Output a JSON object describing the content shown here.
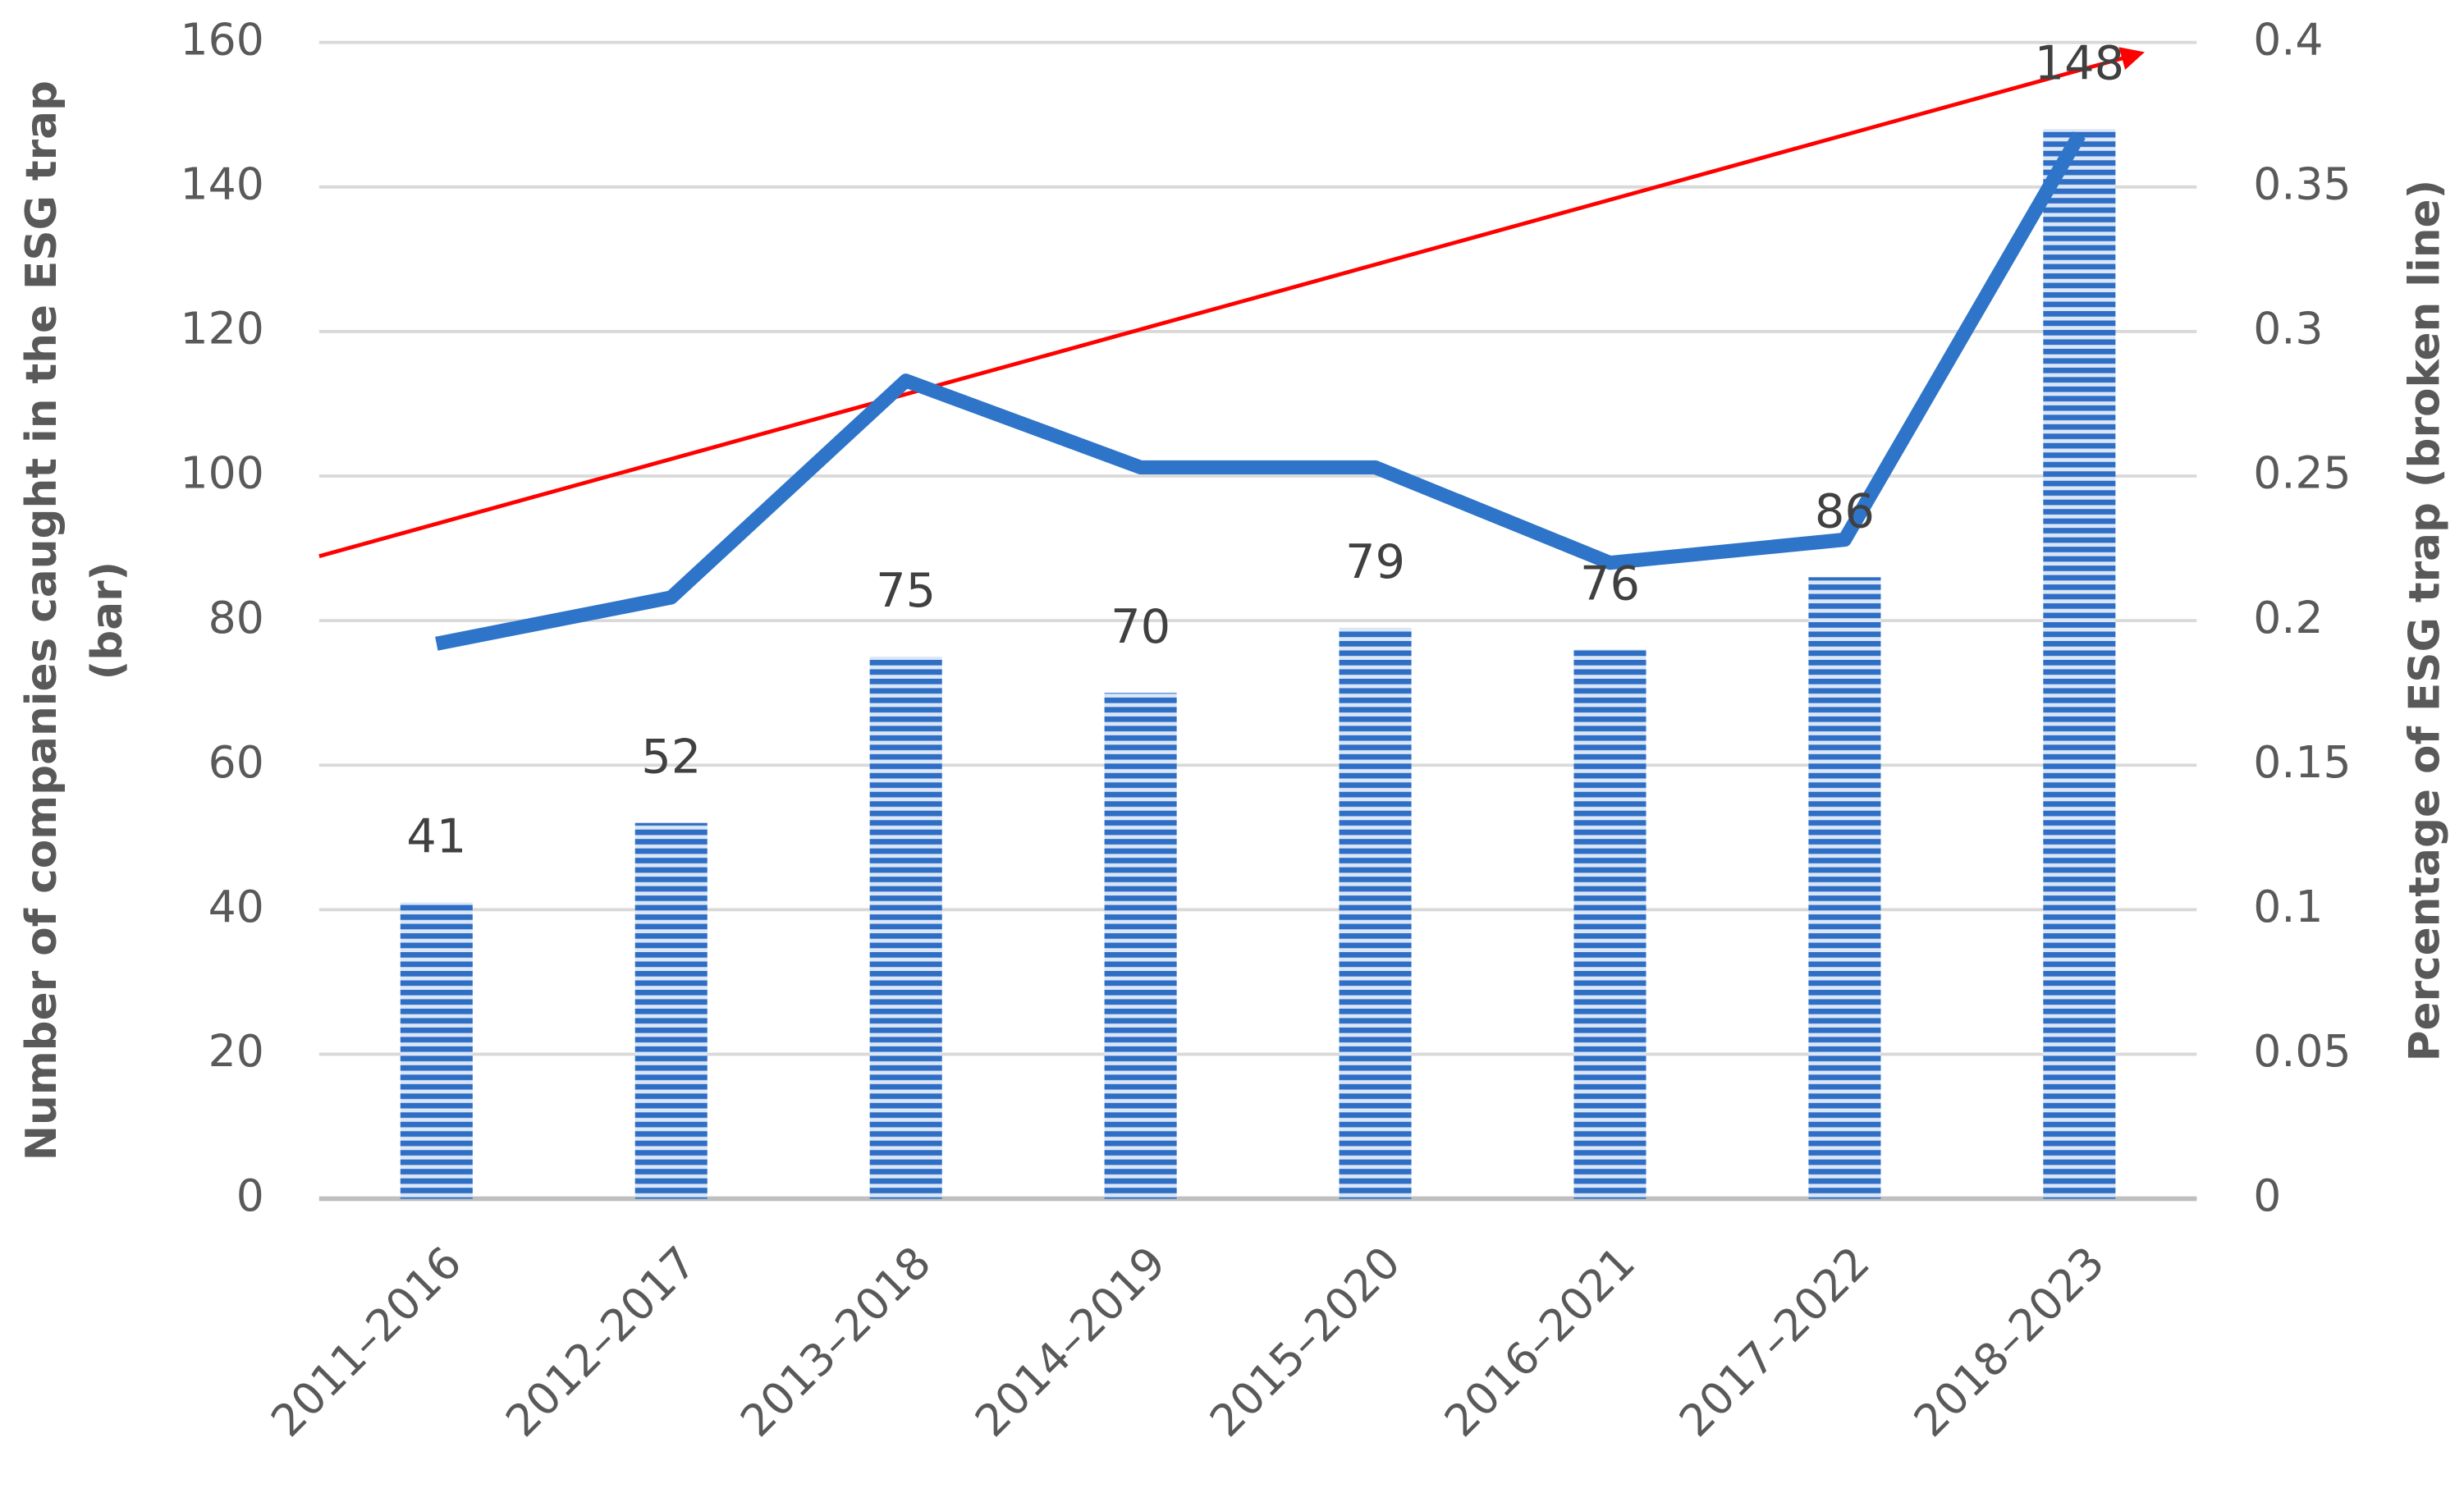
{
  "chart_data": {
    "type": "bar",
    "categories": [
      "2011–2016",
      "2012–2017",
      "2013–2018",
      "2014–2019",
      "2015–2020",
      "2016–2021",
      "2017–2022",
      "2018–2023"
    ],
    "series": [
      {
        "color": "#2e6ec4",
        "values": [
          41,
          52,
          75,
          70,
          79,
          76,
          86,
          148
        ]
      },
      {
        "type": "line",
        "axis": "y2",
        "color": "#2e75c9",
        "values": [
          0.192,
          0.208,
          0.283,
          0.253,
          0.253,
          0.22,
          0.228,
          0.368
        ]
      }
    ],
    "ylabel": [
      "Number of companies caught in the ESG trap",
      "(bar)"
    ],
    "y2label": "Percentage of ESG trap (broken line)",
    "ylim": [
      0,
      160
    ],
    "yticks": [
      0,
      20,
      40,
      60,
      80,
      100,
      120,
      140,
      160
    ],
    "y2lim": [
      0,
      0.4
    ],
    "y2ticks": [
      0,
      0.05,
      0.1,
      0.15,
      0.2,
      0.25,
      0.3,
      0.35,
      0.4
    ],
    "grid": true
  }
}
